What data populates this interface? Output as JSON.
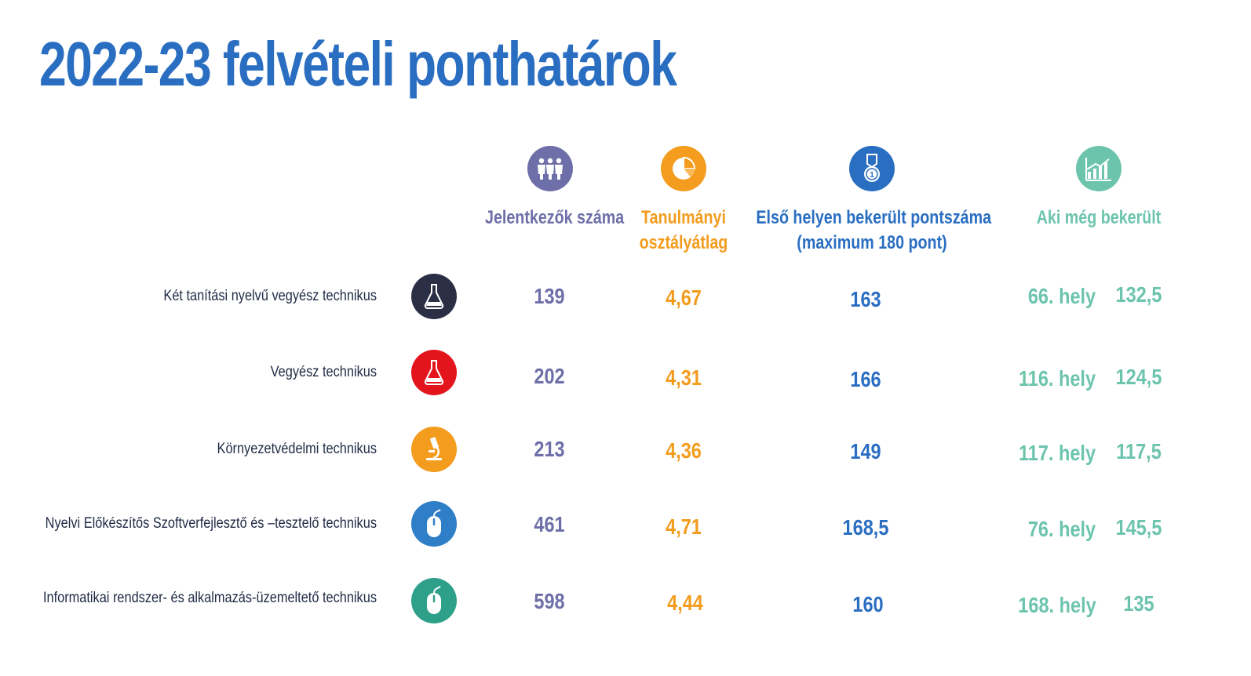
{
  "title": "2022-23 felvételi ponthatárok",
  "colors": {
    "title": "#2a6ec2",
    "applicants": "#6e6fa8",
    "average": "#f39c1e",
    "first": "#2a6ec2",
    "last": "#6cc4ad",
    "label": "#1f2a44"
  },
  "headers": {
    "applicants": {
      "label": "Jelentkezők száma",
      "icon": "group-people-icon"
    },
    "average": {
      "line1": "Tanulmányi",
      "line2": "osztályátlag",
      "icon": "pie-chart-icon"
    },
    "first": {
      "line1": "Első helyen bekerült pontszáma",
      "line2": "(maximum 180 pont)",
      "icon": "medal-icon"
    },
    "last": {
      "label": "Aki még bekerült",
      "icon": "bar-chart-icon"
    }
  },
  "rows": [
    {
      "name": "Két tanítási nyelvű vegyész technikus",
      "icon": "flask-icon",
      "icon_color": "#2b2f45",
      "applicants": "139",
      "average": "4,67",
      "first": "163",
      "rank": "66. hely",
      "score": "132,5"
    },
    {
      "name": "Vegyész technikus",
      "icon": "flask-icon",
      "icon_color": "#e3141c",
      "applicants": "202",
      "average": "4,31",
      "first": "166",
      "rank": "116. hely",
      "score": "124,5"
    },
    {
      "name": "Környezetvédelmi technikus",
      "icon": "microscope-icon",
      "icon_color": "#f39c1e",
      "applicants": "213",
      "average": "4,36",
      "first": "149",
      "rank": "117. hely",
      "score": "117,5"
    },
    {
      "name": "Nyelvi Előkészítős Szoftverfejlesztő és –tesztelő technikus",
      "icon": "mouse-icon",
      "icon_color": "#2f7fc8",
      "applicants": "461",
      "average": "4,71",
      "first": "168,5",
      "rank": "76. hely",
      "score": "145,5"
    },
    {
      "name": "Informatikai rendszer- és alkalmazás-üzemeltető technikus",
      "icon": "mouse-icon",
      "icon_color": "#2ea08a",
      "applicants": "598",
      "average": "4,44",
      "first": "160",
      "rank": "168. hely",
      "score": "135"
    }
  ]
}
